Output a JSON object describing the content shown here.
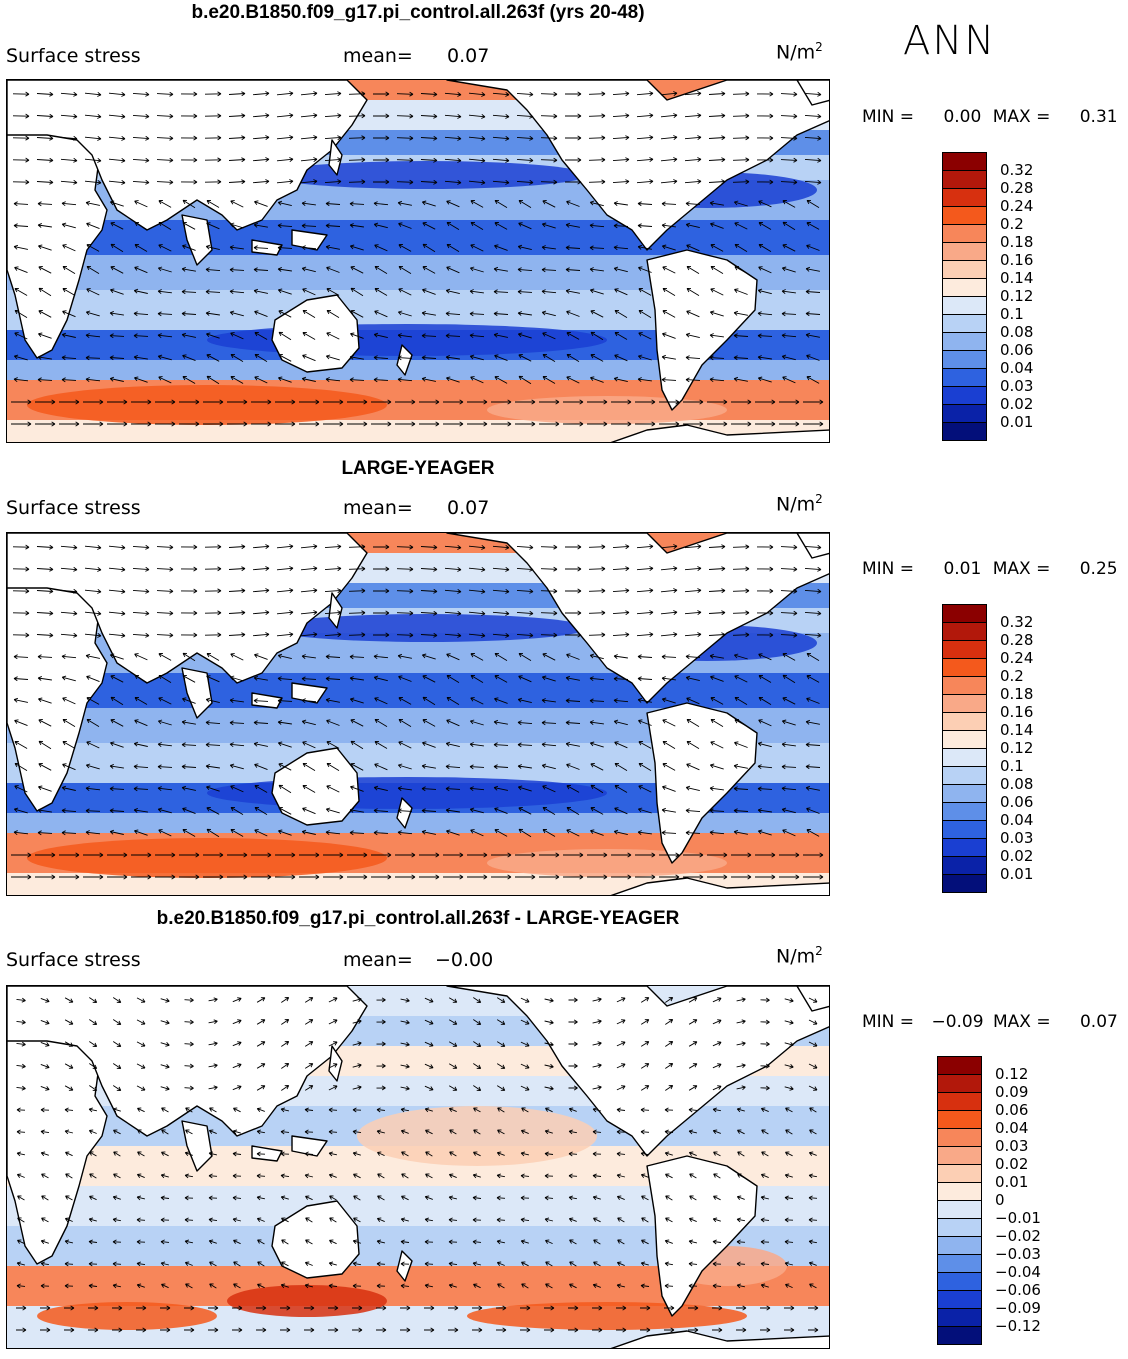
{
  "header": {
    "season_label": "ANN"
  },
  "units_label": "N/m",
  "units_superscript": "2",
  "field_label": "Surface stress",
  "mean_label": "mean=",
  "minmax_labels": {
    "min": "MIN =",
    "max": "MAX ="
  },
  "panels": [
    {
      "title": "b.e20.B1850.f09_g17.pi_control.all.263f (yrs 20-48)",
      "mean": "0.07",
      "min": "0.00",
      "max": "0.31",
      "colorbar": [
        "0.32",
        "0.28",
        "0.24",
        "0.2",
        "0.18",
        "0.16",
        "0.14",
        "0.12",
        "0.1",
        "0.08",
        "0.06",
        "0.04",
        "0.03",
        "0.02",
        "0.01"
      ]
    },
    {
      "title": "LARGE-YEAGER",
      "mean": "0.07",
      "min": "0.01",
      "max": "0.25",
      "colorbar": [
        "0.32",
        "0.28",
        "0.24",
        "0.2",
        "0.18",
        "0.16",
        "0.14",
        "0.12",
        "0.1",
        "0.08",
        "0.06",
        "0.04",
        "0.03",
        "0.02",
        "0.01"
      ]
    },
    {
      "title": "b.e20.B1850.f09_g17.pi_control.all.263f - LARGE-YEAGER",
      "mean": "−0.00",
      "min": "−0.09",
      "max": "0.07",
      "colorbar": [
        "0.12",
        "0.09",
        "0.06",
        "0.04",
        "0.03",
        "0.02",
        "0.01",
        "0",
        "−0.01",
        "−0.02",
        "−0.03",
        "−0.04",
        "−0.06",
        "−0.09",
        "−0.12"
      ]
    }
  ],
  "colors": {
    "abs_scale": [
      "#8b0000",
      "#b2180b",
      "#d7300f",
      "#f4591c",
      "#f7865a",
      "#f9a988",
      "#fccfb4",
      "#fdebdd",
      "#dce8f8",
      "#b8d2f5",
      "#8fb4ef",
      "#5e8fe8",
      "#2e62e0",
      "#1a3fd2",
      "#0a22a8",
      "#030f7a"
    ],
    "diff_scale": [
      "#8b0000",
      "#b2180b",
      "#d7300f",
      "#f4591c",
      "#f7865a",
      "#f9a988",
      "#fccfb4",
      "#fdebdd",
      "#dce8f8",
      "#b8d2f5",
      "#8fb4ef",
      "#5e8fe8",
      "#2e62e0",
      "#1a3fd2",
      "#0a22a8",
      "#030f7a"
    ],
    "land": "#ffffff",
    "coast": "#000000"
  }
}
